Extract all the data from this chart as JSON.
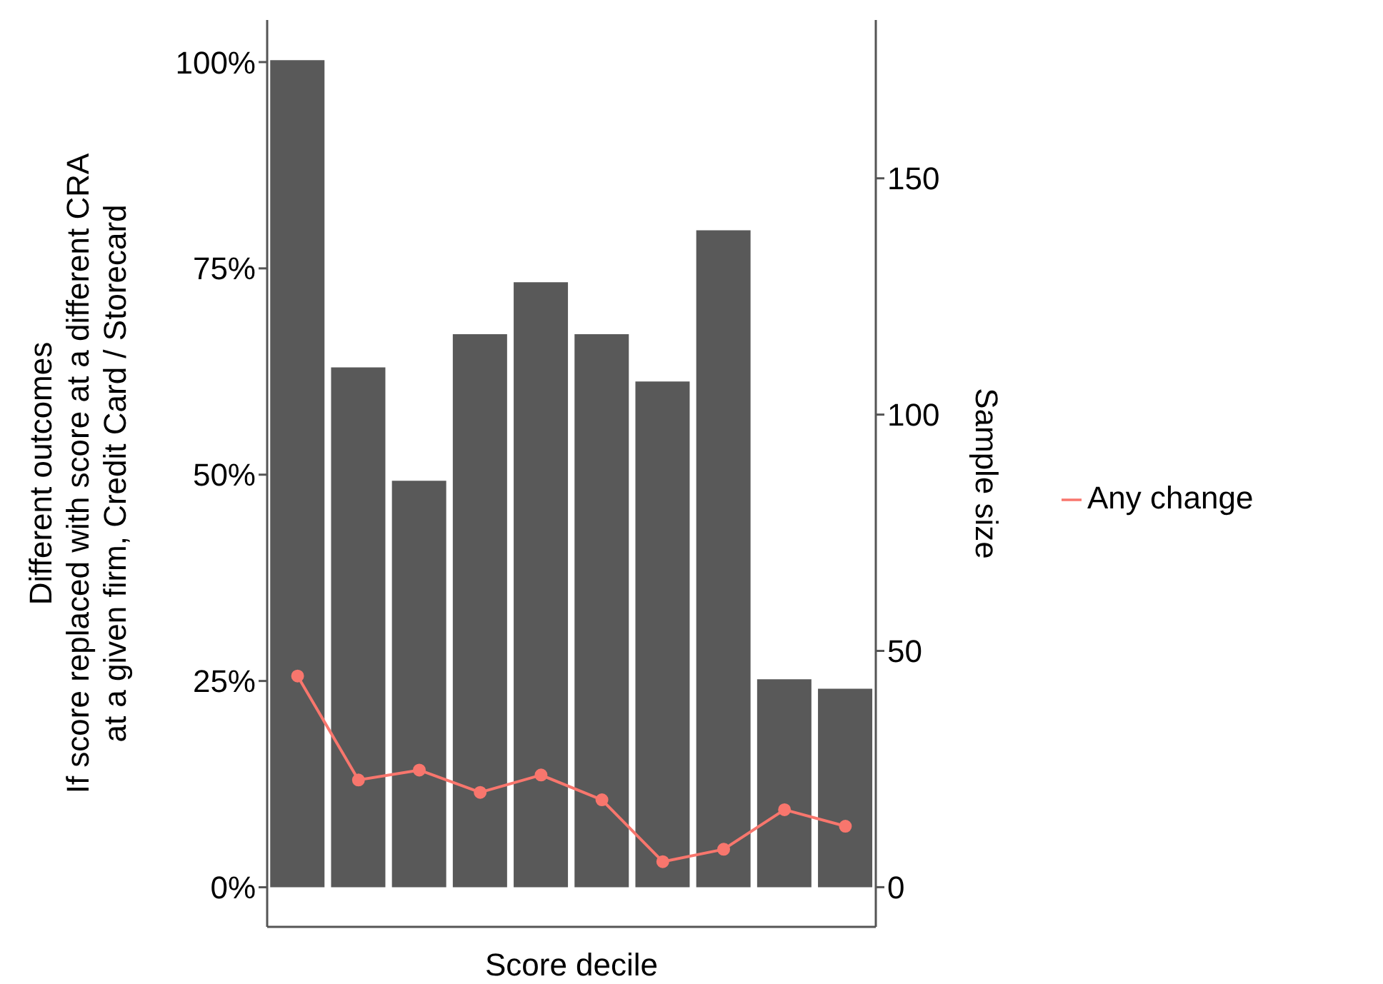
{
  "chart_data": {
    "type": "bar",
    "xlabel": "Score decile",
    "ylabel": "Different outcomes\nIf score replaced with score at a different CRA\nat a given firm, Credit Card / Storecard",
    "y2label": "Sample size",
    "categories": [
      null,
      null,
      null,
      null,
      null,
      null,
      null,
      null,
      null,
      null
    ],
    "series": [
      {
        "axis": "y2",
        "color": "#595959",
        "values": [
          175,
          110,
          86,
          117,
          128,
          117,
          107,
          139,
          44,
          42
        ]
      },
      {
        "type": "line",
        "name": "Any change",
        "color": "#f8766d",
        "marker": "circle",
        "values": [
          25.6,
          13.0,
          14.2,
          11.5,
          13.6,
          10.6,
          3.1,
          4.6,
          9.4,
          7.4
        ]
      }
    ],
    "ylim": [
      -4.8,
      105.1
    ],
    "yticks": [
      {
        "value": 0,
        "label": "0%"
      },
      {
        "value": 25,
        "label": "25%"
      },
      {
        "value": 50,
        "label": "50%"
      },
      {
        "value": 75,
        "label": "75%"
      },
      {
        "value": 100,
        "label": "100%"
      }
    ],
    "y2lim": [
      -8.4,
      183.5
    ],
    "y2ticks": [
      0,
      50,
      100,
      150
    ],
    "grid": false,
    "legend": "right"
  }
}
